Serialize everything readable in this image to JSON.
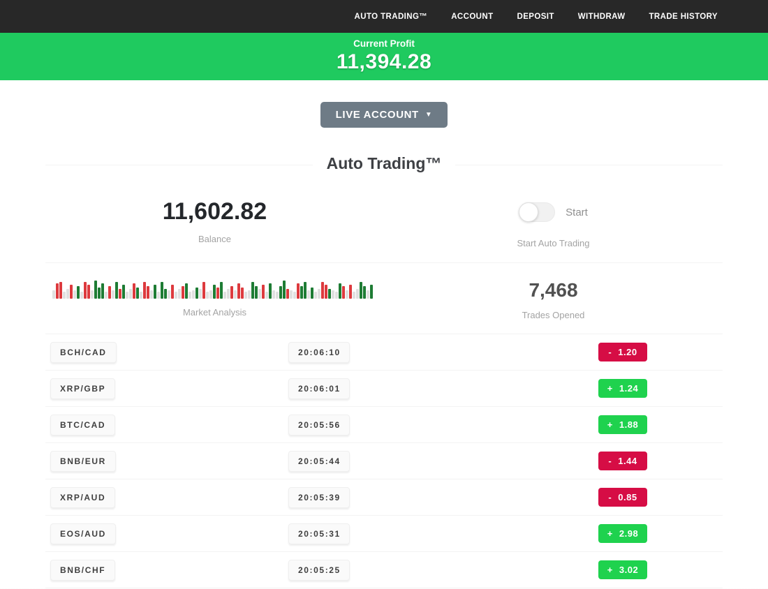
{
  "nav": {
    "items": [
      "AUTO TRADING™",
      "ACCOUNT",
      "DEPOSIT",
      "WITHDRAW",
      "TRADE HISTORY"
    ]
  },
  "profit_banner": {
    "label": "Current Profit",
    "value": "11,394.28"
  },
  "account_selector": {
    "label": "LIVE ACCOUNT",
    "caret": "▼"
  },
  "section": {
    "title": "Auto Trading™"
  },
  "stats": {
    "balance": {
      "value": "11,602.82",
      "label": "Balance"
    },
    "auto_trading": {
      "toggle_label": "Start",
      "toggle_state": "off",
      "caption": "Start Auto Trading"
    },
    "market_analysis": {
      "label": "Market Analysis"
    },
    "trades_opened": {
      "value": "7,468",
      "label": "Trades Opened"
    }
  },
  "chart_data": {
    "type": "bar",
    "title": "Market Analysis",
    "note": "decorative ticker strip, baseline-aligned mini bars",
    "colors_key": {
      "r": "#dd3a3e",
      "g": "#1e7c34",
      "x": "#e0e0e0"
    },
    "bars": [
      [
        "x",
        12
      ],
      [
        "r",
        22
      ],
      [
        "r",
        24
      ],
      [
        "x",
        10
      ],
      [
        "x",
        14
      ],
      [
        "r",
        20
      ],
      [
        "x",
        12
      ],
      [
        "g",
        18
      ],
      [
        "x",
        10
      ],
      [
        "r",
        24
      ],
      [
        "r",
        20
      ],
      [
        "x",
        12
      ],
      [
        "g",
        26
      ],
      [
        "g",
        16
      ],
      [
        "g",
        22
      ],
      [
        "x",
        10
      ],
      [
        "r",
        18
      ],
      [
        "x",
        12
      ],
      [
        "g",
        24
      ],
      [
        "r",
        14
      ],
      [
        "g",
        20
      ],
      [
        "x",
        10
      ],
      [
        "x",
        14
      ],
      [
        "r",
        22
      ],
      [
        "g",
        16
      ],
      [
        "x",
        10
      ],
      [
        "r",
        24
      ],
      [
        "r",
        18
      ],
      [
        "x",
        12
      ],
      [
        "g",
        20
      ],
      [
        "x",
        10
      ],
      [
        "g",
        24
      ],
      [
        "g",
        14
      ],
      [
        "x",
        12
      ],
      [
        "r",
        20
      ],
      [
        "x",
        10
      ],
      [
        "x",
        14
      ],
      [
        "r",
        18
      ],
      [
        "g",
        22
      ],
      [
        "x",
        10
      ],
      [
        "x",
        12
      ],
      [
        "g",
        16
      ],
      [
        "x",
        14
      ],
      [
        "r",
        24
      ],
      [
        "x",
        10
      ],
      [
        "x",
        12
      ],
      [
        "g",
        20
      ],
      [
        "r",
        16
      ],
      [
        "g",
        24
      ],
      [
        "x",
        10
      ],
      [
        "x",
        14
      ],
      [
        "r",
        18
      ],
      [
        "x",
        12
      ],
      [
        "r",
        22
      ],
      [
        "r",
        16
      ],
      [
        "x",
        10
      ],
      [
        "x",
        12
      ],
      [
        "g",
        24
      ],
      [
        "g",
        18
      ],
      [
        "x",
        14
      ],
      [
        "r",
        20
      ],
      [
        "x",
        10
      ],
      [
        "g",
        22
      ],
      [
        "x",
        12
      ],
      [
        "x",
        10
      ],
      [
        "g",
        18
      ],
      [
        "g",
        26
      ],
      [
        "r",
        14
      ],
      [
        "x",
        12
      ],
      [
        "x",
        10
      ],
      [
        "r",
        22
      ],
      [
        "g",
        18
      ],
      [
        "g",
        24
      ],
      [
        "x",
        12
      ],
      [
        "g",
        16
      ],
      [
        "x",
        10
      ],
      [
        "x",
        14
      ],
      [
        "r",
        24
      ],
      [
        "r",
        20
      ],
      [
        "g",
        14
      ],
      [
        "x",
        12
      ],
      [
        "x",
        10
      ],
      [
        "g",
        22
      ],
      [
        "r",
        18
      ],
      [
        "x",
        12
      ],
      [
        "r",
        20
      ],
      [
        "x",
        10
      ],
      [
        "x",
        14
      ],
      [
        "g",
        24
      ],
      [
        "g",
        18
      ],
      [
        "x",
        12
      ],
      [
        "g",
        20
      ]
    ]
  },
  "trades": [
    {
      "pair": "BCH/CAD",
      "time": "20:06:10",
      "sign": "-",
      "amount": "1.20",
      "direction": "loss"
    },
    {
      "pair": "XRP/GBP",
      "time": "20:06:01",
      "sign": "+",
      "amount": "1.24",
      "direction": "profit"
    },
    {
      "pair": "BTC/CAD",
      "time": "20:05:56",
      "sign": "+",
      "amount": "1.88",
      "direction": "profit"
    },
    {
      "pair": "BNB/EUR",
      "time": "20:05:44",
      "sign": "-",
      "amount": "1.44",
      "direction": "loss"
    },
    {
      "pair": "XRP/AUD",
      "time": "20:05:39",
      "sign": "-",
      "amount": "0.85",
      "direction": "loss"
    },
    {
      "pair": "EOS/AUD",
      "time": "20:05:31",
      "sign": "+",
      "amount": "2.98",
      "direction": "profit"
    },
    {
      "pair": "BNB/CHF",
      "time": "20:05:25",
      "sign": "+",
      "amount": "3.02",
      "direction": "profit"
    }
  ],
  "colors": {
    "nav_bg": "#282828",
    "banner_green": "#1fca5f",
    "profit_green": "#1fd24e",
    "loss_red": "#d60d45",
    "button_gray": "#6e7b86"
  }
}
